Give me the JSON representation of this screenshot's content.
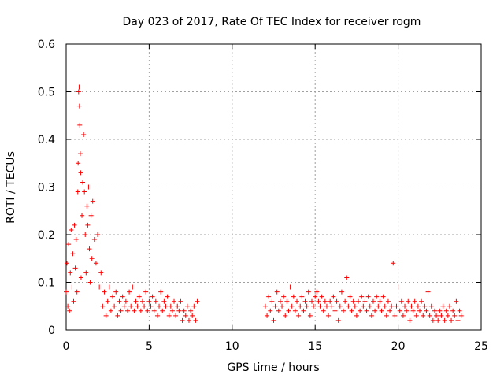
{
  "chart_data": {
    "type": "scatter",
    "title": "Day 023 of 2017, Rate Of TEC Index for receiver rogm",
    "xlabel": "GPS time / hours",
    "ylabel": "ROTI / TECUs",
    "xlim": [
      0,
      25
    ],
    "ylim": [
      0,
      0.6
    ],
    "xticks": [
      0,
      5,
      10,
      15,
      20,
      25
    ],
    "xtick_labels": [
      "0",
      "5",
      "10",
      "15",
      "20",
      "25"
    ],
    "yticks": [
      0,
      0.1,
      0.2,
      0.3,
      0.4,
      0.5,
      0.6
    ],
    "ytick_labels": [
      "0",
      "0.1",
      "0.2",
      "0.3",
      "0.4",
      "0.5",
      "0.6"
    ],
    "grid": true,
    "marker": "plus",
    "color": "#ff0000",
    "series": [
      {
        "name": "ROTI",
        "points": [
          [
            0.0,
            0.08
          ],
          [
            0.05,
            0.14
          ],
          [
            0.1,
            0.05
          ],
          [
            0.15,
            0.18
          ],
          [
            0.2,
            0.04
          ],
          [
            0.25,
            0.12
          ],
          [
            0.3,
            0.21
          ],
          [
            0.35,
            0.09
          ],
          [
            0.4,
            0.16
          ],
          [
            0.45,
            0.06
          ],
          [
            0.5,
            0.22
          ],
          [
            0.55,
            0.13
          ],
          [
            0.6,
            0.19
          ],
          [
            0.65,
            0.08
          ],
          [
            0.7,
            0.29
          ],
          [
            0.72,
            0.35
          ],
          [
            0.75,
            0.5
          ],
          [
            0.78,
            0.51
          ],
          [
            0.8,
            0.47
          ],
          [
            0.82,
            0.43
          ],
          [
            0.85,
            0.37
          ],
          [
            0.88,
            0.33
          ],
          [
            0.9,
            0.11
          ],
          [
            0.95,
            0.24
          ],
          [
            1.0,
            0.31
          ],
          [
            1.05,
            0.41
          ],
          [
            1.1,
            0.29
          ],
          [
            1.15,
            0.2
          ],
          [
            1.2,
            0.12
          ],
          [
            1.25,
            0.26
          ],
          [
            1.3,
            0.22
          ],
          [
            1.35,
            0.3
          ],
          [
            1.4,
            0.17
          ],
          [
            1.45,
            0.1
          ],
          [
            1.5,
            0.24
          ],
          [
            1.55,
            0.15
          ],
          [
            1.6,
            0.27
          ],
          [
            1.7,
            0.19
          ],
          [
            1.8,
            0.14
          ],
          [
            1.9,
            0.2
          ],
          [
            2.0,
            0.09
          ],
          [
            2.1,
            0.12
          ],
          [
            2.2,
            0.05
          ],
          [
            2.3,
            0.08
          ],
          [
            2.4,
            0.03
          ],
          [
            2.5,
            0.06
          ],
          [
            2.6,
            0.09
          ],
          [
            2.7,
            0.04
          ],
          [
            2.8,
            0.07
          ],
          [
            2.9,
            0.05
          ],
          [
            3.0,
            0.08
          ],
          [
            3.1,
            0.03
          ],
          [
            3.2,
            0.06
          ],
          [
            3.3,
            0.04
          ],
          [
            3.4,
            0.07
          ],
          [
            3.5,
            0.05
          ],
          [
            3.6,
            0.06
          ],
          [
            3.7,
            0.04
          ],
          [
            3.8,
            0.08
          ],
          [
            3.9,
            0.05
          ],
          [
            4.0,
            0.09
          ],
          [
            4.1,
            0.04
          ],
          [
            4.2,
            0.06
          ],
          [
            4.3,
            0.05
          ],
          [
            4.4,
            0.07
          ],
          [
            4.5,
            0.04
          ],
          [
            4.6,
            0.06
          ],
          [
            4.7,
            0.05
          ],
          [
            4.8,
            0.08
          ],
          [
            4.9,
            0.04
          ],
          [
            5.0,
            0.06
          ],
          [
            5.1,
            0.05
          ],
          [
            5.2,
            0.07
          ],
          [
            5.3,
            0.04
          ],
          [
            5.4,
            0.06
          ],
          [
            5.5,
            0.03
          ],
          [
            5.6,
            0.05
          ],
          [
            5.7,
            0.08
          ],
          [
            5.8,
            0.04
          ],
          [
            5.9,
            0.06
          ],
          [
            6.0,
            0.05
          ],
          [
            6.1,
            0.07
          ],
          [
            6.2,
            0.03
          ],
          [
            6.3,
            0.05
          ],
          [
            6.4,
            0.04
          ],
          [
            6.5,
            0.06
          ],
          [
            6.6,
            0.03
          ],
          [
            6.7,
            0.05
          ],
          [
            6.8,
            0.04
          ],
          [
            6.9,
            0.06
          ],
          [
            7.0,
            0.02
          ],
          [
            7.1,
            0.04
          ],
          [
            7.2,
            0.03
          ],
          [
            7.3,
            0.05
          ],
          [
            7.4,
            0.02
          ],
          [
            7.5,
            0.04
          ],
          [
            7.6,
            0.03
          ],
          [
            7.7,
            0.05
          ],
          [
            7.8,
            0.02
          ],
          [
            7.9,
            0.06
          ],
          [
            12.0,
            0.05
          ],
          [
            12.1,
            0.03
          ],
          [
            12.2,
            0.07
          ],
          [
            12.3,
            0.04
          ],
          [
            12.4,
            0.06
          ],
          [
            12.5,
            0.02
          ],
          [
            12.6,
            0.05
          ],
          [
            12.7,
            0.08
          ],
          [
            12.8,
            0.04
          ],
          [
            12.9,
            0.06
          ],
          [
            13.0,
            0.05
          ],
          [
            13.1,
            0.07
          ],
          [
            13.2,
            0.03
          ],
          [
            13.3,
            0.06
          ],
          [
            13.4,
            0.04
          ],
          [
            13.5,
            0.09
          ],
          [
            13.6,
            0.05
          ],
          [
            13.7,
            0.07
          ],
          [
            13.8,
            0.04
          ],
          [
            13.9,
            0.06
          ],
          [
            14.0,
            0.03
          ],
          [
            14.1,
            0.05
          ],
          [
            14.2,
            0.07
          ],
          [
            14.3,
            0.04
          ],
          [
            14.4,
            0.06
          ],
          [
            14.5,
            0.05
          ],
          [
            14.6,
            0.08
          ],
          [
            14.7,
            0.03
          ],
          [
            14.8,
            0.06
          ],
          [
            14.9,
            0.05
          ],
          [
            15.0,
            0.07
          ],
          [
            15.1,
            0.08
          ],
          [
            15.2,
            0.06
          ],
          [
            15.3,
            0.05
          ],
          [
            15.4,
            0.07
          ],
          [
            15.5,
            0.04
          ],
          [
            15.6,
            0.06
          ],
          [
            15.7,
            0.05
          ],
          [
            15.8,
            0.03
          ],
          [
            15.9,
            0.06
          ],
          [
            16.0,
            0.05
          ],
          [
            16.1,
            0.07
          ],
          [
            16.2,
            0.04
          ],
          [
            16.3,
            0.06
          ],
          [
            16.4,
            0.02
          ],
          [
            16.5,
            0.05
          ],
          [
            16.6,
            0.08
          ],
          [
            16.7,
            0.04
          ],
          [
            16.8,
            0.06
          ],
          [
            16.9,
            0.11
          ],
          [
            17.0,
            0.05
          ],
          [
            17.1,
            0.07
          ],
          [
            17.2,
            0.04
          ],
          [
            17.3,
            0.06
          ],
          [
            17.4,
            0.05
          ],
          [
            17.5,
            0.03
          ],
          [
            17.6,
            0.06
          ],
          [
            17.7,
            0.04
          ],
          [
            17.8,
            0.07
          ],
          [
            17.9,
            0.05
          ],
          [
            18.0,
            0.06
          ],
          [
            18.1,
            0.04
          ],
          [
            18.2,
            0.07
          ],
          [
            18.3,
            0.05
          ],
          [
            18.4,
            0.03
          ],
          [
            18.5,
            0.06
          ],
          [
            18.6,
            0.04
          ],
          [
            18.7,
            0.07
          ],
          [
            18.8,
            0.05
          ],
          [
            18.9,
            0.06
          ],
          [
            19.0,
            0.04
          ],
          [
            19.1,
            0.07
          ],
          [
            19.2,
            0.05
          ],
          [
            19.3,
            0.03
          ],
          [
            19.4,
            0.06
          ],
          [
            19.5,
            0.04
          ],
          [
            19.6,
            0.05
          ],
          [
            19.7,
            0.14
          ],
          [
            19.8,
            0.03
          ],
          [
            19.9,
            0.05
          ],
          [
            20.0,
            0.09
          ],
          [
            20.1,
            0.04
          ],
          [
            20.2,
            0.06
          ],
          [
            20.3,
            0.03
          ],
          [
            20.4,
            0.05
          ],
          [
            20.5,
            0.04
          ],
          [
            20.6,
            0.06
          ],
          [
            20.7,
            0.02
          ],
          [
            20.8,
            0.05
          ],
          [
            20.9,
            0.04
          ],
          [
            21.0,
            0.06
          ],
          [
            21.1,
            0.03
          ],
          [
            21.2,
            0.05
          ],
          [
            21.3,
            0.04
          ],
          [
            21.4,
            0.06
          ],
          [
            21.5,
            0.03
          ],
          [
            21.6,
            0.05
          ],
          [
            21.7,
            0.04
          ],
          [
            21.8,
            0.08
          ],
          [
            21.9,
            0.03
          ],
          [
            22.0,
            0.05
          ],
          [
            22.1,
            0.02
          ],
          [
            22.2,
            0.04
          ],
          [
            22.3,
            0.03
          ],
          [
            22.4,
            0.02
          ],
          [
            22.5,
            0.04
          ],
          [
            22.6,
            0.03
          ],
          [
            22.7,
            0.05
          ],
          [
            22.8,
            0.02
          ],
          [
            22.9,
            0.04
          ],
          [
            23.0,
            0.03
          ],
          [
            23.1,
            0.05
          ],
          [
            23.2,
            0.02
          ],
          [
            23.3,
            0.04
          ],
          [
            23.4,
            0.03
          ],
          [
            23.5,
            0.06
          ],
          [
            23.6,
            0.02
          ],
          [
            23.7,
            0.04
          ],
          [
            23.8,
            0.03
          ]
        ]
      }
    ]
  }
}
